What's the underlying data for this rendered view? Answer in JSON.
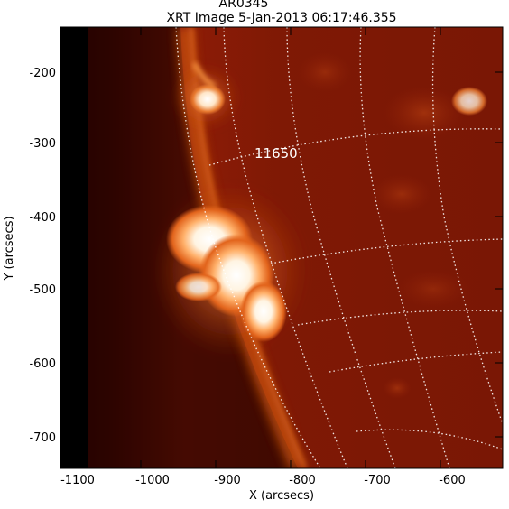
{
  "figure": {
    "title_top_partial": "AR0345",
    "title": "XRT Image  5-Jan-2013 06:17:46.355",
    "active_region_label": "11650",
    "xlabel": "X (arcsecs)",
    "ylabel": "Y (arcsecs)",
    "x_ticks": [
      "-1100",
      "-1000",
      "-900",
      "-800",
      "-700",
      "-600"
    ],
    "y_ticks": [
      "-200",
      "-300",
      "-400",
      "-500",
      "-600",
      "-700"
    ],
    "x_range": [
      -1125,
      -530
    ],
    "y_range": [
      -745,
      -145
    ],
    "colors": {
      "background_disk": "#8a1a05",
      "off_limb": "#120100",
      "limb_glow": "#d75a10",
      "flare_core": "#fff6e8",
      "grid": "#ffffff"
    }
  }
}
